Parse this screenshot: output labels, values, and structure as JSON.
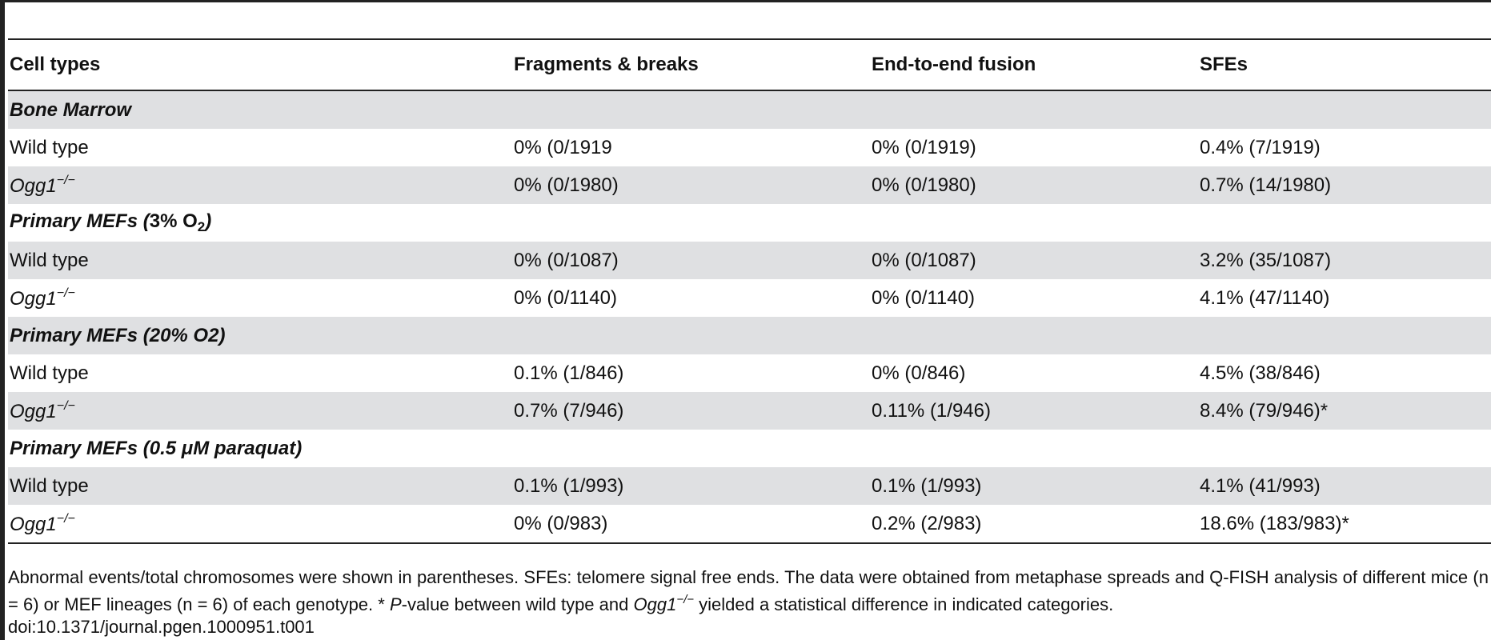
{
  "table": {
    "headers": [
      "Cell types",
      "Fragments & breaks",
      "End-to-end fusion",
      "SFEs"
    ],
    "sections": [
      {
        "group_label": "Bone Marrow",
        "rows": [
          {
            "genotype": "Wild type",
            "fragments": "0% (0/1919",
            "fusion": "0% (0/1919)",
            "sfes": "0.4% (7/1919)"
          },
          {
            "genotype": "Ogg1",
            "genotype_sup": "−/−",
            "fragments": "0% (0/1980)",
            "fusion": "0% (0/1980)",
            "sfes": "0.7% (14/1980)"
          }
        ]
      },
      {
        "group_label": "Primary MEFs (",
        "group_label_bold": "3% O",
        "group_label_sub": "2",
        "group_label_end": ")",
        "rows": [
          {
            "genotype": "Wild type",
            "fragments": "0% (0/1087)",
            "fusion": "0% (0/1087)",
            "sfes": "3.2% (35/1087)"
          },
          {
            "genotype": "Ogg1",
            "genotype_sup": "−/−",
            "fragments": "0% (0/1140)",
            "fusion": "0% (0/1140)",
            "sfes": "4.1% (47/1140)"
          }
        ]
      },
      {
        "group_label": "Primary MEFs (20% O2)",
        "rows": [
          {
            "genotype": "Wild type",
            "fragments": "0.1% (1/846)",
            "fusion": "0% (0/846)",
            "sfes": "4.5% (38/846)"
          },
          {
            "genotype": "Ogg1",
            "genotype_sup": "−/−",
            "fragments": "0.7% (7/946)",
            "fusion": "0.11% (1/946)",
            "sfes": "8.4% (79/946)*"
          }
        ]
      },
      {
        "group_label": "Primary MEFs (0.5 μM paraquat)",
        "rows": [
          {
            "genotype": "Wild type",
            "fragments": "0.1% (1/993)",
            "fusion": "0.1% (1/993)",
            "sfes": "4.1% (41/993)"
          },
          {
            "genotype": "Ogg1",
            "genotype_sup": "−/−",
            "fragments": "0% (0/983)",
            "fusion": "0.2% (2/983)",
            "sfes": "18.6% (183/983)*"
          }
        ]
      }
    ]
  },
  "footnote": {
    "part1": "Abnormal events/total chromosomes were shown in parentheses. SFEs: telomere signal free ends. The data were obtained from metaphase spreads and Q-FISH analysis of different mice (n = 6) or MEF lineages (n = 6) of each genotype. * ",
    "p_italic": "P",
    "part2": "-value between wild type and ",
    "gene_italic": "Ogg1",
    "gene_sup": "−/−",
    "part3": " yielded a statistical difference in indicated categories.",
    "doi": "doi:10.1371/journal.pgen.1000951.t001"
  }
}
